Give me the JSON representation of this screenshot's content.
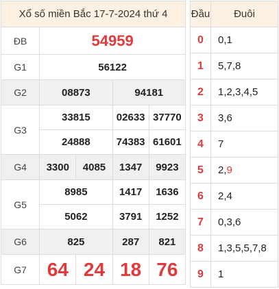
{
  "title": "Xổ số miền Bắc 17-7-2024 thứ 4",
  "prizes": {
    "db": {
      "label": "ĐB",
      "values": [
        "54959"
      ]
    },
    "g1": {
      "label": "G1",
      "values": [
        "56122"
      ]
    },
    "g2": {
      "label": "G2",
      "values": [
        "08873",
        "94181"
      ]
    },
    "g3": {
      "label": "G3",
      "values": [
        "33815",
        "02633",
        "37770",
        "24888",
        "74383",
        "61601"
      ]
    },
    "g4": {
      "label": "G4",
      "values": [
        "3300",
        "4085",
        "1347",
        "9923"
      ]
    },
    "g5": {
      "label": "G5",
      "values": [
        "8985",
        "1417",
        "1636",
        "5062",
        "3791",
        "1252"
      ]
    },
    "g6": {
      "label": "G6",
      "values": [
        "825",
        "287",
        "821"
      ]
    },
    "g7": {
      "label": "G7",
      "values": [
        "64",
        "24",
        "18",
        "76"
      ]
    }
  },
  "loto": {
    "head_label": "Đầu",
    "tail_label": "Đuôi",
    "rows": [
      {
        "dau": "0",
        "duoi": "0,1"
      },
      {
        "dau": "1",
        "duoi": "5,7,8"
      },
      {
        "dau": "2",
        "duoi": "1,2,3,4,5"
      },
      {
        "dau": "3",
        "duoi": "3,6"
      },
      {
        "dau": "4",
        "duoi": "7"
      },
      {
        "dau": "5",
        "duoi_plain": "2,",
        "duoi_red": "9"
      },
      {
        "dau": "6",
        "duoi": "2,4"
      },
      {
        "dau": "7",
        "duoi": "0,3,6"
      },
      {
        "dau": "8",
        "duoi": "1,3,5,5,7,8"
      },
      {
        "dau": "9",
        "duoi": "1"
      }
    ]
  },
  "colors": {
    "accent": "#e03a3a",
    "header_bg": "#fdf1e3",
    "row_gray": "#f0f0f0"
  }
}
